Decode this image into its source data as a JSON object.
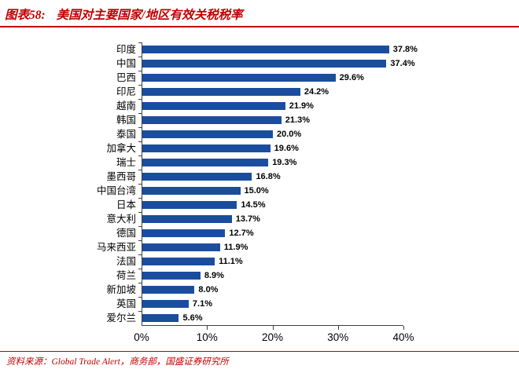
{
  "header": {
    "figure_label": "图表58:",
    "title": "美国对主要国家/地区有效关税税率"
  },
  "footer": {
    "source": "资料来源：Global Trade Alert，商务部，国盛证券研究所"
  },
  "colors": {
    "bar": "#1a4d9e",
    "accent_red": "#c00000",
    "axis": "#3f3f3f"
  },
  "chart_data": {
    "type": "bar",
    "orientation": "horizontal",
    "title": "美国对主要国家/地区有效关税税率",
    "categories": [
      "印度",
      "中国",
      "巴西",
      "印尼",
      "越南",
      "韩国",
      "泰国",
      "加拿大",
      "瑞士",
      "墨西哥",
      "中国台湾",
      "日本",
      "意大利",
      "德国",
      "马来西亚",
      "法国",
      "荷兰",
      "新加坡",
      "英国",
      "爱尔兰"
    ],
    "values": [
      37.8,
      37.4,
      29.6,
      24.2,
      21.9,
      21.3,
      20.0,
      19.6,
      19.3,
      16.8,
      15.0,
      14.5,
      13.7,
      12.7,
      11.9,
      11.1,
      8.9,
      8.0,
      7.1,
      5.6
    ],
    "value_labels": [
      "37.8%",
      "37.4%",
      "29.6%",
      "24.2%",
      "21.9%",
      "21.3%",
      "20.0%",
      "19.6%",
      "19.3%",
      "16.8%",
      "15.0%",
      "14.5%",
      "13.7%",
      "12.7%",
      "11.9%",
      "11.1%",
      "8.9%",
      "8.0%",
      "7.1%",
      "5.6%"
    ],
    "xlabel": "",
    "ylabel": "",
    "xlim": [
      0,
      40
    ],
    "x_ticks": [
      "0%",
      "10%",
      "20%",
      "30%",
      "40%"
    ],
    "x_tick_values": [
      0,
      10,
      20,
      30,
      40
    ],
    "grid": false,
    "legend": false,
    "data_label_position": "outside-end"
  }
}
